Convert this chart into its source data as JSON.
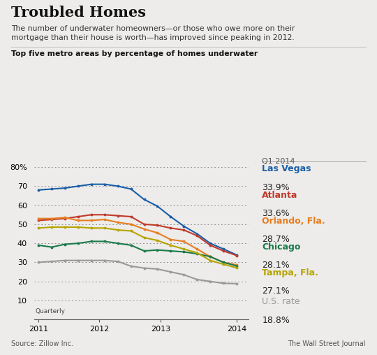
{
  "title": "Troubled Homes",
  "subtitle": "The number of underwater homeowners—or those who owe more on their\nmortgage than their house is worth—has improved since peaking in 2012.",
  "chart_label": "Top five metro areas by percentage of homes underwater",
  "q1_label": "Q1 2014",
  "background_color": "#edecea",
  "series": [
    {
      "name": "Las Vegas",
      "color": "#1a5ea8",
      "final_value": "33.9%",
      "data": [
        68,
        68.5,
        69,
        70,
        71,
        71,
        70,
        68.5,
        63,
        59.5,
        54,
        49,
        45,
        40,
        37,
        33.9
      ]
    },
    {
      "name": "Atlanta",
      "color": "#c0392b",
      "final_value": "33.6%",
      "data": [
        52,
        52.5,
        53,
        54,
        55,
        55,
        54.5,
        54,
        50,
        49.5,
        48,
        47,
        44,
        39,
        36,
        33.6
      ]
    },
    {
      "name": "Orlando, Fla.",
      "color": "#e67e22",
      "final_value": "28.7%",
      "data": [
        53,
        53,
        53.5,
        52,
        52,
        52.5,
        51,
        50,
        47.5,
        45.5,
        42,
        41,
        37,
        33,
        30,
        28.7
      ]
    },
    {
      "name": "Chicago",
      "color": "#1a7a4a",
      "final_value": "28.1%",
      "data": [
        39,
        38,
        39.5,
        40,
        41,
        41,
        40,
        39,
        36,
        36.5,
        36,
        35.5,
        34.5,
        33,
        30,
        28.1
      ]
    },
    {
      "name": "Tampa, Fla.",
      "color": "#b5a400",
      "final_value": "27.1%",
      "data": [
        48,
        48.5,
        48.5,
        48.5,
        48,
        48,
        47,
        46.5,
        43,
        41.5,
        39,
        37,
        35,
        31,
        29,
        27.1
      ]
    },
    {
      "name": "U.S. rate",
      "color": "#999999",
      "final_value": "18.8%",
      "data": [
        30,
        30.5,
        31,
        31,
        31,
        31,
        30.5,
        28,
        27,
        26.5,
        25,
        23.5,
        21,
        20,
        19,
        18.8
      ]
    }
  ],
  "ylim": [
    0,
    82
  ],
  "yticks": [
    0,
    10,
    20,
    30,
    40,
    50,
    60,
    70,
    80
  ],
  "ytick_labels": [
    "",
    "10",
    "20",
    "30",
    "40",
    "50",
    "60",
    "70",
    "80%"
  ],
  "source_left": "Source: Zillow Inc.",
  "source_right": "The Wall Street Journal"
}
